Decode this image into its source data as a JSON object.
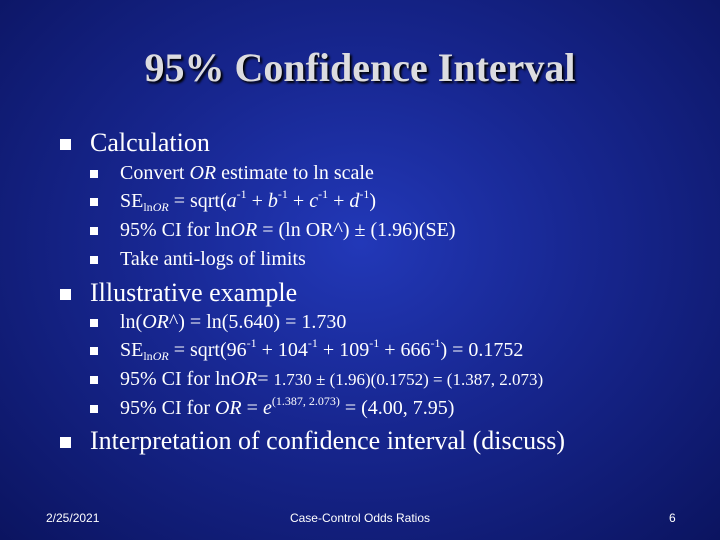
{
  "title": "95% Confidence Interval",
  "bullets": {
    "calc": "Calculation",
    "calc_items": {
      "s1_a": "Convert ",
      "s1_or": "OR",
      "s1_b": " estimate  to ln scale",
      "s2_se": "SE",
      "s2_sub_ln": "ln",
      "s2_sub_or": "OR",
      "s2_eq": " = sqrt(",
      "s2_a": "a",
      "s2_exp1": "-1",
      "s2_plus1": " + ",
      "s2_b": "b",
      "s2_exp2": "-1",
      "s2_plus2": " + ",
      "s2_c": "c",
      "s2_exp3": "-1",
      "s2_plus3": " + ",
      "s2_d": "d",
      "s2_exp4": "-1",
      "s2_close": ")",
      "s3_a": "95% CI for ln",
      "s3_or": "OR",
      "s3_b": "  = (ln OR^) ± (1.96)(SE)",
      "s4": "Take anti-logs of limits"
    },
    "example": "Illustrative example",
    "example_items": {
      "e1_a": "ln(",
      "e1_or": "OR",
      "e1_b": "^) = ln(5.640) = 1.730",
      "e2_se": "SE",
      "e2_sub_ln": "ln",
      "e2_sub_or": "OR",
      "e2_eq": " = sqrt(96",
      "e2_exp1": "-1",
      "e2_p1": " + 104",
      "e2_exp2": "-1",
      "e2_p2": " + 109",
      "e2_exp3": "-1",
      "e2_p3": " + 666",
      "e2_exp4": "-1",
      "e2_end": ") = 0.1752",
      "e3_a": "95% CI for ln",
      "e3_or": "OR",
      "e3_b": "= ",
      "e3_sm": "1.730 ± (1.96)(0.1752) = (1.387, 2.073)",
      "e4_a": "95% CI for ",
      "e4_or": "OR",
      "e4_b": " = ",
      "e4_e": "e",
      "e4_exp": "(1.387, 2.073)",
      "e4_end": " = (4.00, 7.95)"
    },
    "interp": "Interpretation of confidence interval (discuss)"
  },
  "footer": {
    "date": "2/25/2021",
    "center": "Case-Control Odds Ratios",
    "page": "6"
  },
  "colors": {
    "background": "#17268f",
    "title": "#dcdce0",
    "text": "#ffffff"
  }
}
